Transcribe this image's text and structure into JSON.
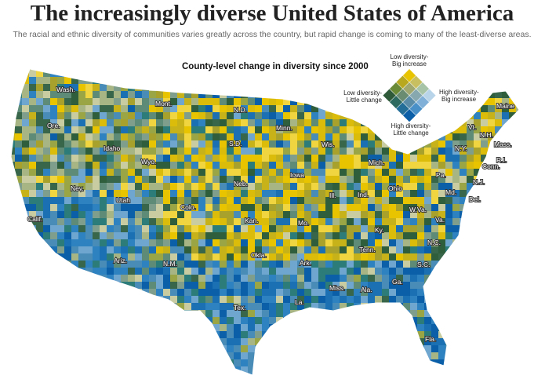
{
  "header": {
    "title": "The increasingly diverse United States of America",
    "subtitle": "The racial and ethnic diversity of communities varies greatly across the country, but rapid change is coming to many of the least-diverse areas."
  },
  "map": {
    "title": "County-level change in diversity since 2000",
    "legend": {
      "top": [
        "Low diversity-",
        "Big increase"
      ],
      "left": [
        "Low diversity-",
        "Little change"
      ],
      "right": [
        "High diversity-",
        "Big increase"
      ],
      "bottom": [
        "High diversity-",
        "Little change"
      ]
    },
    "states": [
      "Wash.",
      "Ore.",
      "Calif.",
      "Idaho",
      "Nev.",
      "Mont.",
      "Wyo.",
      "Utah",
      "Ariz.",
      "Colo.",
      "N.M.",
      "N.D.",
      "S.D.",
      "Neb.",
      "Kan.",
      "Okla.",
      "Tex.",
      "Minn.",
      "Iowa",
      "Mo.",
      "Ark.",
      "La.",
      "Wis.",
      "Ill.",
      "Mich.",
      "Ind.",
      "Ohio",
      "Ky.",
      "Tenn.",
      "Miss.",
      "Ala.",
      "Ga.",
      "Fla.",
      "S.C.",
      "N.C.",
      "Va.",
      "W.Va.",
      "Pa.",
      "Md.",
      "Del.",
      "N.J.",
      "N.Y.",
      "Conn.",
      "R.I.",
      "Mass.",
      "Vt.",
      "N.H.",
      "Maine"
    ]
  }
}
